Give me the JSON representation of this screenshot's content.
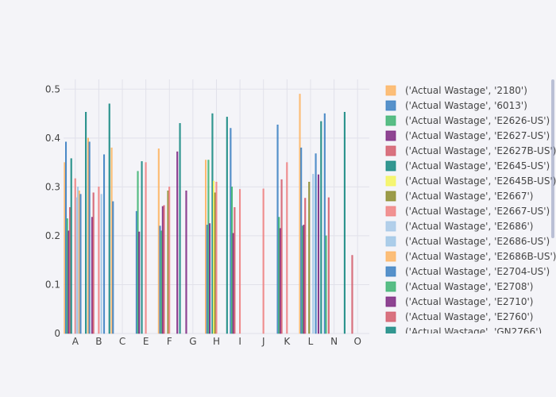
{
  "chart_data": {
    "type": "bar",
    "categories": [
      "A",
      "B",
      "C",
      "E",
      "F",
      "G",
      "H",
      "I",
      "J",
      "K",
      "L",
      "N",
      "O"
    ],
    "ylim": [
      0,
      0.52
    ],
    "yticks": [
      0,
      0.1,
      0.2,
      0.3,
      0.4,
      0.5
    ],
    "ytick_labels": [
      "0",
      "0.1",
      "0.2",
      "0.3",
      "0.4",
      "0.5"
    ],
    "grid": true,
    "legend_position": "right",
    "series": [
      {
        "name": "('Actual Wastage', '2180')",
        "color": "#fdb462",
        "values": [
          0.35,
          0.4,
          0.38,
          null,
          0.378,
          null,
          0.355,
          null,
          null,
          null,
          0.49,
          null,
          null
        ]
      },
      {
        "name": "('Actual Wastage', '6013')",
        "color": "#3a7fc2",
        "values": [
          0.392,
          0.392,
          0.27,
          0.25,
          0.22,
          null,
          0.222,
          0.42,
          null,
          0.427,
          0.38,
          0.45,
          null
        ]
      },
      {
        "name": "('Actual Wastage', 'E2626-US')",
        "color": "#3cb371",
        "values": [
          0.235,
          null,
          null,
          0.332,
          0.21,
          null,
          0.355,
          0.3,
          null,
          0.238,
          0.22,
          0.2,
          null
        ]
      },
      {
        "name": "('Actual Wastage', 'E2627-US')",
        "color": "#7b2580",
        "values": [
          0.21,
          0.238,
          null,
          0.208,
          0.26,
          0.292,
          0.225,
          0.205,
          null,
          0.215,
          0.222,
          null,
          null
        ]
      },
      {
        "name": "('Actual Wastage', 'E2627B-US')",
        "color": "#d35b6a",
        "values": [
          0.258,
          0.288,
          null,
          null,
          0.262,
          null,
          null,
          0.258,
          null,
          0.315,
          0.277,
          0.278,
          0.16
        ]
      },
      {
        "name": "('Actual Wastage', 'E2645-US')",
        "color": "#11867f",
        "values": [
          0.358,
          null,
          null,
          0.352,
          null,
          null,
          0.45,
          null,
          null,
          null,
          null,
          null,
          null
        ]
      },
      {
        "name": "('Actual Wastage', 'E2645B-US')",
        "color": "#f5f55a",
        "values": [
          null,
          null,
          null,
          null,
          null,
          null,
          0.312,
          null,
          null,
          null,
          null,
          null,
          null
        ]
      },
      {
        "name": "('Actual Wastage', 'E2667')",
        "color": "#8b8b2a",
        "values": [
          null,
          null,
          null,
          null,
          0.292,
          null,
          0.288,
          null,
          null,
          null,
          0.31,
          null,
          null
        ]
      },
      {
        "name": "('Actual Wastage', 'E2667-US')",
        "color": "#f08080",
        "values": [
          0.317,
          0.3,
          null,
          0.35,
          0.3,
          null,
          0.31,
          0.295,
          0.296,
          0.35,
          null,
          null,
          null
        ]
      },
      {
        "name": "('Actual Wastage', 'E2686')",
        "color": "#a6c8e8",
        "values": [
          0.278,
          null,
          null,
          null,
          null,
          null,
          null,
          null,
          null,
          null,
          null,
          null,
          null
        ]
      },
      {
        "name": "('Actual Wastage', 'E2686-US')",
        "color": "#9ec6e6",
        "values": [
          0.3,
          0.285,
          null,
          null,
          null,
          null,
          null,
          null,
          null,
          null,
          0.326,
          null,
          null
        ]
      },
      {
        "name": "('Actual Wastage', 'E2686B-US')",
        "color": "#fdb462",
        "values": [
          0.292,
          null,
          null,
          null,
          null,
          null,
          null,
          null,
          null,
          null,
          null,
          null,
          null
        ]
      },
      {
        "name": "('Actual Wastage', 'E2704-US')",
        "color": "#3a7fc2",
        "values": [
          0.285,
          0.366,
          null,
          null,
          null,
          null,
          null,
          null,
          null,
          null,
          0.368,
          null,
          null
        ]
      },
      {
        "name": "('Actual Wastage', 'E2708')",
        "color": "#3cb371",
        "values": [
          null,
          null,
          null,
          null,
          null,
          null,
          null,
          null,
          null,
          null,
          null,
          null,
          null
        ]
      },
      {
        "name": "('Actual Wastage', 'E2710')",
        "color": "#7b2580",
        "values": [
          null,
          null,
          null,
          null,
          0.372,
          null,
          null,
          null,
          null,
          null,
          0.325,
          null,
          null
        ]
      },
      {
        "name": "('Actual Wastage', 'E2760')",
        "color": "#d35b6a",
        "values": [
          null,
          null,
          null,
          null,
          null,
          null,
          null,
          null,
          null,
          null,
          null,
          null,
          null
        ]
      },
      {
        "name": "('Actual Wastage', 'GN2766')",
        "color": "#11867f",
        "values": [
          0.453,
          0.47,
          null,
          null,
          0.43,
          null,
          0.443,
          null,
          null,
          null,
          0.434,
          0.453,
          null
        ]
      }
    ]
  }
}
